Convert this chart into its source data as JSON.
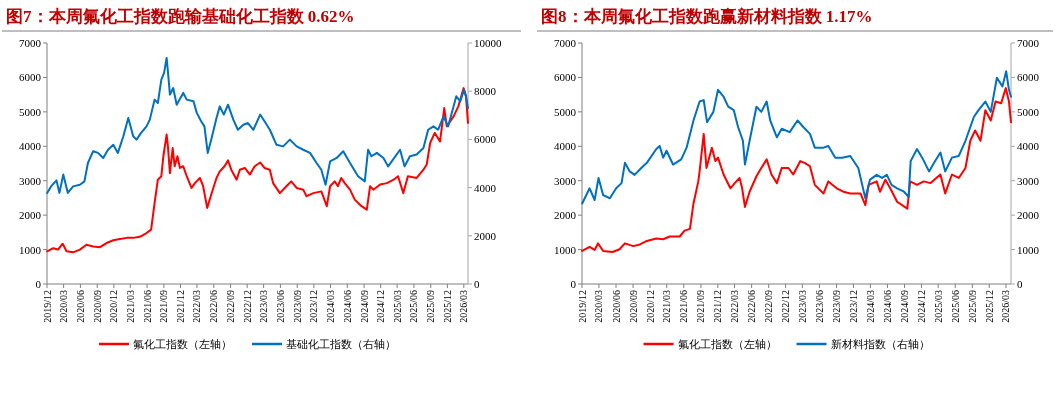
{
  "chart_data": [
    {
      "type": "line",
      "title": "图7：本周氟化工指数跑输基础化工指数 0.62%",
      "legend": "bottom",
      "xlim": [
        "2019-12-01",
        "2026-03-24"
      ],
      "ylim": [
        0,
        7000
      ],
      "yticks": [
        0,
        1000,
        2000,
        3000,
        4000,
        5000,
        6000,
        7000
      ],
      "y2lim": [
        0,
        10000
      ],
      "y2ticks": [
        0,
        2000,
        4000,
        6000,
        8000,
        10000
      ],
      "xticks": [
        {
          "value": "2019-12",
          "label": "2019/12"
        },
        {
          "value": "2020-03",
          "label": "2020/03"
        },
        {
          "value": "2020-06",
          "label": "2020/06"
        },
        {
          "value": "2020-09",
          "label": "2020/09"
        },
        {
          "value": "2020-12",
          "label": "2020/12"
        },
        {
          "value": "2021-03",
          "label": "2021/03"
        },
        {
          "value": "2021-06",
          "label": "2021/06"
        },
        {
          "value": "2021-09",
          "label": "2021/09"
        },
        {
          "value": "2021-12",
          "label": "2021/12"
        },
        {
          "value": "2022-03",
          "label": "2022/03"
        },
        {
          "value": "2022-06",
          "label": "2022/06"
        },
        {
          "value": "2022-09",
          "label": "2022/09"
        },
        {
          "value": "2022-12",
          "label": "2022/12"
        },
        {
          "value": "2023-03",
          "label": "2023/03"
        },
        {
          "value": "2023-06",
          "label": "2023/06"
        },
        {
          "value": "2023-09",
          "label": "2023/09"
        },
        {
          "value": "2023-12",
          "label": "2023/12"
        },
        {
          "value": "2024-03",
          "label": "2024/03"
        },
        {
          "value": "2024-06",
          "label": "2024/06"
        },
        {
          "value": "2024-09",
          "label": "2024/09"
        },
        {
          "value": "2024-12",
          "label": "2024/12"
        },
        {
          "value": "2025-03",
          "label": "2025/03"
        },
        {
          "value": "2025-06",
          "label": "2025/06"
        },
        {
          "value": "2025-09",
          "label": "2025/09"
        },
        {
          "value": "2025-12",
          "label": "2025/12"
        },
        {
          "value": "2026-03",
          "label": "2026/03"
        }
      ],
      "series": [
        {
          "name": "氟化工指数（左轴）",
          "color": "#ff0000",
          "x": [
            "2019-12-02",
            "2020-01-04",
            "2020-01-30",
            "2020-02-25",
            "2020-03-17",
            "2020-04-22",
            "2020-05-29",
            "2020-07-04",
            "2020-08-10",
            "2020-09-16",
            "2020-10-22",
            "2020-11-28",
            "2021-01-04",
            "2021-02-10",
            "2021-03-17",
            "2021-04-22",
            "2021-05-29",
            "2021-06-23",
            "2021-07-12",
            "2021-07-30",
            "2021-08-18",
            "2021-08-29",
            "2021-09-16",
            "2021-09-23",
            "2021-10-04",
            "2021-10-19",
            "2021-10-30",
            "2021-11-14",
            "2021-11-28",
            "2021-12-16",
            "2022-01-04",
            "2022-01-30",
            "2022-02-18",
            "2022-03-17",
            "2022-04-04",
            "2022-04-26",
            "2022-05-18",
            "2022-06-16",
            "2022-07-04",
            "2022-07-30",
            "2022-08-18",
            "2022-09-05",
            "2022-10-04",
            "2022-10-22",
            "2022-11-18",
            "2022-12-16",
            "2023-01-11",
            "2023-02-10",
            "2023-03-06",
            "2023-04-04",
            "2023-04-22",
            "2023-05-29",
            "2023-07-04",
            "2023-07-30",
            "2023-08-29",
            "2023-10-04",
            "2023-10-22",
            "2023-11-28",
            "2024-01-11",
            "2024-02-10",
            "2024-02-28",
            "2024-03-24",
            "2024-04-11",
            "2024-04-29",
            "2024-05-18",
            "2024-06-16",
            "2024-07-12",
            "2024-08-18",
            "2024-09-16",
            "2024-10-04",
            "2024-10-22",
            "2024-11-28",
            "2025-01-04",
            "2025-02-10",
            "2025-03-06",
            "2025-04-04",
            "2025-04-29",
            "2025-06-16",
            "2025-07-23",
            "2025-08-10",
            "2025-08-29",
            "2025-09-23",
            "2025-10-22",
            "2025-11-14",
            "2025-11-28",
            "2026-01-04",
            "2026-01-30",
            "2026-02-28",
            "2026-03-13",
            "2026-03-24"
          ],
          "values": [
            950,
            1040,
            1000,
            1170,
            950,
            920,
            1000,
            1140,
            1090,
            1070,
            1190,
            1270,
            1310,
            1340,
            1340,
            1370,
            1480,
            1580,
            2350,
            3030,
            3130,
            3710,
            4340,
            4000,
            3220,
            3950,
            3420,
            3710,
            3370,
            3420,
            3130,
            2790,
            2930,
            3080,
            2840,
            2210,
            2590,
            3080,
            3270,
            3420,
            3590,
            3320,
            3030,
            3320,
            3370,
            3180,
            3420,
            3530,
            3370,
            3320,
            2930,
            2640,
            2840,
            2980,
            2790,
            2740,
            2550,
            2640,
            2690,
            2260,
            2840,
            2980,
            2840,
            3080,
            2930,
            2740,
            2450,
            2260,
            2160,
            2840,
            2740,
            2890,
            2930,
            3030,
            3130,
            2640,
            3130,
            3080,
            3320,
            3470,
            4100,
            4390,
            4140,
            5110,
            4580,
            4870,
            5160,
            5690,
            5450,
            4680
          ]
        },
        {
          "name": "基础化工指数（右轴）",
          "color": "#0070c0",
          "axis": "y2",
          "x": [
            "2019-12-02",
            "2019-12-23",
            "2020-01-22",
            "2020-02-07",
            "2020-02-28",
            "2020-03-24",
            "2020-04-22",
            "2020-05-29",
            "2020-06-23",
            "2020-07-12",
            "2020-08-10",
            "2020-09-05",
            "2020-10-04",
            "2020-10-30",
            "2020-11-28",
            "2020-12-23",
            "2021-01-22",
            "2021-02-18",
            "2021-03-17",
            "2021-04-04",
            "2021-04-29",
            "2021-05-29",
            "2021-06-16",
            "2021-07-12",
            "2021-07-30",
            "2021-08-18",
            "2021-09-02",
            "2021-09-16",
            "2021-09-23",
            "2021-10-04",
            "2021-10-22",
            "2021-11-10",
            "2021-12-16",
            "2022-01-04",
            "2022-02-10",
            "2022-02-28",
            "2022-03-24",
            "2022-04-11",
            "2022-04-29",
            "2022-05-18",
            "2022-06-16",
            "2022-07-04",
            "2022-07-26",
            "2022-08-18",
            "2022-09-16",
            "2022-10-11",
            "2022-11-10",
            "2022-12-05",
            "2023-01-04",
            "2023-02-10",
            "2023-03-06",
            "2023-04-04",
            "2023-05-10",
            "2023-06-16",
            "2023-07-23",
            "2023-08-29",
            "2023-10-04",
            "2023-11-10",
            "2023-12-16",
            "2024-01-11",
            "2024-02-03",
            "2024-02-28",
            "2024-04-04",
            "2024-05-10",
            "2024-06-16",
            "2024-07-30",
            "2024-09-05",
            "2024-09-23",
            "2024-10-11",
            "2024-11-10",
            "2024-12-16",
            "2025-01-11",
            "2025-03-17",
            "2025-04-11",
            "2025-05-10",
            "2025-06-16",
            "2025-07-23",
            "2025-08-18",
            "2025-09-16",
            "2025-10-11",
            "2025-11-10",
            "2025-12-05",
            "2026-01-19",
            "2026-02-10",
            "2026-03-02",
            "2026-03-13",
            "2026-03-24"
          ],
          "values": [
            3780,
            4050,
            4300,
            3780,
            4540,
            3780,
            4050,
            4120,
            4260,
            5020,
            5510,
            5440,
            5230,
            5570,
            5780,
            5440,
            6130,
            6890,
            6130,
            5990,
            6270,
            6540,
            6820,
            7650,
            7510,
            8480,
            8760,
            9380,
            8820,
            7860,
            8130,
            7440,
            7930,
            7650,
            7580,
            7100,
            6750,
            6540,
            5440,
            5990,
            6890,
            7370,
            7030,
            7440,
            6820,
            6400,
            6610,
            6680,
            6400,
            7030,
            6750,
            6400,
            5780,
            5710,
            5990,
            5710,
            5570,
            5440,
            5020,
            4740,
            4120,
            5090,
            5230,
            5510,
            5020,
            4470,
            4260,
            5570,
            5300,
            5440,
            5230,
            4880,
            5570,
            4880,
            5300,
            5370,
            5640,
            6400,
            6540,
            6400,
            6960,
            6540,
            7790,
            7580,
            8060,
            7790,
            7300
          ]
        }
      ]
    },
    {
      "type": "line",
      "title": "图8：本周氟化工指数跑赢新材料指数 1.17%",
      "legend": "bottom",
      "xlim": [
        "2019-12-01",
        "2026-03-28"
      ],
      "ylim": [
        0,
        7000
      ],
      "yticks": [
        0,
        1000,
        2000,
        3000,
        4000,
        5000,
        6000,
        7000
      ],
      "y2lim": [
        0,
        7000
      ],
      "y2ticks": [
        0,
        1000,
        2000,
        3000,
        4000,
        5000,
        6000,
        7000
      ],
      "xticks": [
        {
          "value": "2019-12",
          "label": "2019/12"
        },
        {
          "value": "2020-03",
          "label": "2020/03"
        },
        {
          "value": "2020-06",
          "label": "2020/06"
        },
        {
          "value": "2020-09",
          "label": "2020/09"
        },
        {
          "value": "2020-12",
          "label": "2020/12"
        },
        {
          "value": "2021-03",
          "label": "2021/03"
        },
        {
          "value": "2021-06",
          "label": "2021/06"
        },
        {
          "value": "2021-09",
          "label": "2021/09"
        },
        {
          "value": "2021-12",
          "label": "2021/12"
        },
        {
          "value": "2022-03",
          "label": "2022/03"
        },
        {
          "value": "2022-06",
          "label": "2022/06"
        },
        {
          "value": "2022-09",
          "label": "2022/09"
        },
        {
          "value": "2022-12",
          "label": "2022/12"
        },
        {
          "value": "2023-03",
          "label": "2023/03"
        },
        {
          "value": "2023-06",
          "label": "2023/06"
        },
        {
          "value": "2023-09",
          "label": "2023/09"
        },
        {
          "value": "2023-12",
          "label": "2023/12"
        },
        {
          "value": "2024-03",
          "label": "2024/03"
        },
        {
          "value": "2024-06",
          "label": "2024/06"
        },
        {
          "value": "2024-09",
          "label": "2024/09"
        },
        {
          "value": "2024-12",
          "label": "2024/12"
        },
        {
          "value": "2025-03",
          "label": "2025/03"
        },
        {
          "value": "2025-06",
          "label": "2025/06"
        },
        {
          "value": "2025-09",
          "label": "2025/09"
        },
        {
          "value": "2025-12",
          "label": "2025/12"
        },
        {
          "value": "2026-03",
          "label": "2026/03"
        }
      ],
      "series": [
        {
          "name": "氟化工指数（左轴）",
          "color": "#ff0000",
          "x": [
            "2019-12-02",
            "2020-01-11",
            "2020-02-07",
            "2020-02-25",
            "2020-03-24",
            "2020-05-14",
            "2020-06-20",
            "2020-07-19",
            "2020-09-02",
            "2020-10-08",
            "2020-11-14",
            "2021-01-04",
            "2021-02-10",
            "2021-03-17",
            "2021-05-10",
            "2021-06-05",
            "2021-07-04",
            "2021-07-23",
            "2021-08-18",
            "2021-08-25",
            "2021-09-16",
            "2021-10-01",
            "2021-10-30",
            "2021-11-18",
            "2021-12-02",
            "2022-01-01",
            "2022-02-07",
            "2022-03-02",
            "2022-03-28",
            "2022-04-11",
            "2022-04-26",
            "2022-05-21",
            "2022-06-27",
            "2022-07-23",
            "2022-08-21",
            "2022-09-16",
            "2022-10-15",
            "2022-11-10",
            "2022-12-16",
            "2023-01-11",
            "2023-02-18",
            "2023-03-13",
            "2023-04-11",
            "2023-05-07",
            "2023-06-23",
            "2023-07-19",
            "2023-09-02",
            "2023-10-08",
            "2023-11-14",
            "2024-01-08",
            "2024-02-03",
            "2024-02-21",
            "2024-04-04",
            "2024-04-22",
            "2024-05-21",
            "2024-06-16",
            "2024-07-23",
            "2024-09-16",
            "2024-10-01",
            "2024-11-07",
            "2024-12-13",
            "2025-01-19",
            "2025-03-13",
            "2025-04-08",
            "2025-05-14",
            "2025-06-20",
            "2025-07-26",
            "2025-08-21",
            "2025-09-16",
            "2025-10-15",
            "2025-11-10",
            "2025-12-09",
            "2026-01-04",
            "2026-02-03",
            "2026-02-28",
            "2026-03-17",
            "2026-03-28"
          ],
          "values": [
            960,
            1080,
            990,
            1180,
            960,
            930,
            1010,
            1180,
            1100,
            1150,
            1250,
            1320,
            1300,
            1380,
            1380,
            1550,
            1600,
            2340,
            2980,
            3270,
            4360,
            3370,
            3960,
            3570,
            3670,
            3180,
            2780,
            2930,
            3080,
            2780,
            2240,
            2680,
            3130,
            3370,
            3620,
            3180,
            2930,
            3370,
            3370,
            3180,
            3570,
            3520,
            3420,
            2880,
            2630,
            2980,
            2780,
            2680,
            2630,
            2630,
            2290,
            2880,
            2980,
            2680,
            3030,
            2780,
            2390,
            2190,
            2980,
            2880,
            2980,
            2930,
            3180,
            2630,
            3180,
            3080,
            3370,
            4160,
            4460,
            4160,
            5050,
            4750,
            5300,
            5250,
            5690,
            5300,
            4700
          ]
        },
        {
          "name": "新材料指数（右轴）",
          "color": "#0070c0",
          "axis": "y2",
          "x": [
            "2019-12-02",
            "2020-01-11",
            "2020-02-07",
            "2020-02-28",
            "2020-03-24",
            "2020-04-29",
            "2020-06-02",
            "2020-07-01",
            "2020-07-19",
            "2020-08-14",
            "2020-09-09",
            "2020-10-15",
            "2020-11-14",
            "2021-01-04",
            "2021-01-22",
            "2021-02-10",
            "2021-02-28",
            "2021-04-04",
            "2021-05-18",
            "2021-06-16",
            "2021-07-23",
            "2021-08-25",
            "2021-09-16",
            "2021-10-04",
            "2021-11-07",
            "2021-12-02",
            "2022-01-01",
            "2022-01-26",
            "2022-02-25",
            "2022-03-20",
            "2022-04-15",
            "2022-04-26",
            "2022-05-21",
            "2022-06-27",
            "2022-07-23",
            "2022-08-21",
            "2022-09-09",
            "2022-10-15",
            "2022-11-10",
            "2022-12-23",
            "2023-02-03",
            "2023-03-06",
            "2023-04-11",
            "2023-05-07",
            "2023-06-23",
            "2023-07-19",
            "2023-08-25",
            "2023-10-01",
            "2023-11-14",
            "2023-12-27",
            "2024-02-03",
            "2024-02-28",
            "2024-04-04",
            "2024-05-03",
            "2024-05-29",
            "2024-06-23",
            "2024-07-23",
            "2024-08-29",
            "2024-09-23",
            "2024-10-04",
            "2024-11-07",
            "2024-12-05",
            "2025-01-11",
            "2025-02-07",
            "2025-03-13",
            "2025-04-08",
            "2025-05-14",
            "2025-06-20",
            "2025-07-26",
            "2025-09-09",
            "2025-10-04",
            "2025-11-10",
            "2025-12-09",
            "2026-01-11",
            "2026-02-10",
            "2026-03-02",
            "2026-03-17",
            "2026-03-28"
          ],
          "values": [
            2340,
            2780,
            2440,
            3080,
            2580,
            2490,
            2780,
            2930,
            3520,
            3270,
            3170,
            3370,
            3520,
            3920,
            4010,
            3670,
            3870,
            3470,
            3620,
            3960,
            4750,
            5300,
            5340,
            4700,
            5000,
            5640,
            5440,
            5150,
            5050,
            4560,
            4160,
            3470,
            4160,
            5150,
            5000,
            5300,
            4750,
            4260,
            4510,
            4410,
            4750,
            4560,
            4360,
            3960,
            3960,
            4010,
            3670,
            3670,
            3720,
            3370,
            2490,
            3030,
            3170,
            3080,
            3170,
            2880,
            2780,
            2680,
            2530,
            3570,
            3920,
            3670,
            3270,
            3520,
            3820,
            3270,
            3670,
            3720,
            4160,
            4850,
            5050,
            5300,
            5000,
            5990,
            5740,
            6180,
            5640,
            5440
          ]
        }
      ]
    }
  ]
}
